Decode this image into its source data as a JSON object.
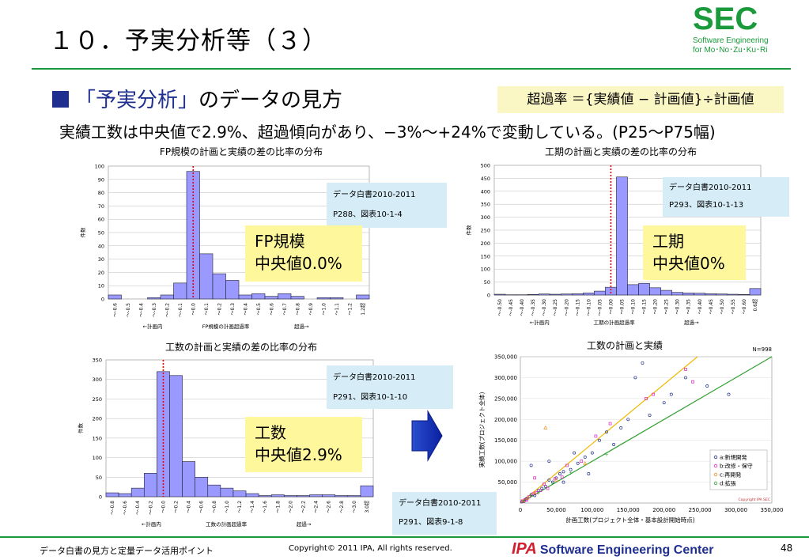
{
  "header": {
    "title": "１０．予実分析等（３）",
    "logo_main": "SEC",
    "logo_line1": "Software Engineering",
    "logo_line2": "for Mo･No･Zu･Ku･Ri"
  },
  "bullet": {
    "prefix": "「予実分析」",
    "text": "のデータの見方"
  },
  "formula": "超過率 ＝{実績値 − 計画値}÷計画値",
  "summary": "実績工数は中央値で2.9%、超過傾向があり、−3%〜+24%で変動している。(P25〜P75幅)",
  "charts": {
    "fp": {
      "title": "FP規模の計画と実績の差の比率の分布",
      "note_line1": "データ白書2010-2011",
      "note_line2": "P288、図表10-1-4",
      "callout_line1": "FP規模",
      "callout_line2": "中央値0.0%"
    },
    "period": {
      "title": "工期の計画と実績の差の比率の分布",
      "note_line1": "データ白書2010-2011",
      "note_line2": "P293、図表10-1-13",
      "callout_line1": "工期",
      "callout_line2": "中央値0%"
    },
    "effort": {
      "title": "工数の計画と実績の差の比率の分布",
      "note_line1": "データ白書2010-2011",
      "note_line2": "P291、図表10-1-10",
      "callout_line1": "工数",
      "callout_line2": "中央値2.9%"
    },
    "scatter": {
      "title": "工数の計画と実績",
      "note_line1": "データ白書2010-2011",
      "note_line2": "P291、図表9-1-8"
    }
  },
  "footer": {
    "left": "データ白書の見方と定量データ活用ポイント",
    "copyright": "Copyright© 2011 IPA, All rights reserved.",
    "ipa": "IPA",
    "center_name": "Software Engineering Center",
    "page": "48"
  },
  "colors": {
    "green": "#1a9a3a",
    "navy": "#1f2f8f",
    "bar": "#9999ff",
    "median": "#ee0000"
  },
  "chart_data": [
    {
      "type": "bar",
      "title": "FP規模の計画と実績の差の比率の分布",
      "ylabel": "件数",
      "xlabel": "FP規模の計画超過率",
      "x_annotations": [
        "←計画内",
        "超過→"
      ],
      "ylim": [
        0,
        100
      ],
      "yticks": [
        0,
        10,
        20,
        30,
        40,
        50,
        60,
        70,
        80,
        90,
        100
      ],
      "categories": [
        "〜-0.6",
        "〜-0.5",
        "〜-0.4",
        "〜-0.3",
        "〜-0.2",
        "〜-0.1",
        "〜0.0",
        "〜0.1",
        "〜0.2",
        "〜0.3",
        "〜0.4",
        "〜0.5",
        "〜0.6",
        "〜0.7",
        "〜0.8",
        "〜0.9",
        "〜1.0",
        "〜1.1",
        "〜1.2",
        "1.2超"
      ],
      "values": [
        3,
        0,
        0,
        1,
        3,
        12,
        96,
        34,
        19,
        14,
        3,
        4,
        2,
        4,
        2,
        0,
        1,
        1,
        0,
        3
      ],
      "median_label": "〜0.0"
    },
    {
      "type": "bar",
      "title": "工期の計画と実績の差の比率の分布",
      "ylabel": "件数",
      "xlabel": "工期の計画超過率",
      "x_annotations": [
        "←計画内",
        "超過→"
      ],
      "ylim": [
        0,
        500
      ],
      "yticks": [
        0,
        50,
        100,
        150,
        200,
        250,
        300,
        350,
        400,
        450,
        500
      ],
      "categories": [
        "〜-0.50",
        "〜-0.45",
        "〜-0.40",
        "〜-0.35",
        "〜-0.30",
        "〜-0.25",
        "〜-0.20",
        "〜-0.15",
        "〜-0.10",
        "〜-0.05",
        "〜0.00",
        "〜0.05",
        "〜0.10",
        "〜0.15",
        "〜0.20",
        "〜0.25",
        "〜0.30",
        "〜0.35",
        "〜0.40",
        "〜0.45",
        "〜0.50",
        "〜0.55",
        "〜0.60",
        "0.6超"
      ],
      "values": [
        3,
        1,
        1,
        2,
        4,
        3,
        4,
        5,
        8,
        15,
        30,
        455,
        40,
        45,
        28,
        18,
        10,
        8,
        7,
        5,
        4,
        3,
        2,
        25
      ],
      "median_label": "〜0.00"
    },
    {
      "type": "bar",
      "title": "工数の計画と実績の差の比率の分布",
      "ylabel": "件数",
      "xlabel": "工数の計画超過率",
      "x_annotations": [
        "←計画内",
        "超過→"
      ],
      "ylim": [
        0,
        350
      ],
      "yticks": [
        0,
        50,
        100,
        150,
        200,
        250,
        300,
        350
      ],
      "categories": [
        "〜-0.8",
        "〜-0.6",
        "〜-0.4",
        "〜-0.2",
        "〜0.0",
        "〜0.2",
        "〜0.4",
        "〜0.6",
        "〜0.8",
        "〜1.0",
        "〜1.2",
        "〜1.4",
        "〜1.6",
        "〜1.8",
        "〜2.0",
        "〜2.2",
        "〜2.4",
        "〜2.6",
        "〜2.8",
        "〜3.0",
        "3.0超"
      ],
      "values": [
        10,
        8,
        22,
        60,
        320,
        310,
        90,
        50,
        30,
        22,
        15,
        8,
        3,
        5,
        3,
        3,
        5,
        5,
        3,
        3,
        28
      ],
      "median_label": "〜0.0"
    },
    {
      "type": "scatter",
      "title": "工数の計画と実績",
      "annotation": "N=998",
      "xlabel": "計画工数(プロジェクト全体・基本設計開始時点)",
      "ylabel": "実績工数(プロジェクト全体)",
      "xlim": [
        0,
        350000
      ],
      "ylim": [
        0,
        350000
      ],
      "xticks": [
        0,
        50000,
        100000,
        150000,
        200000,
        250000,
        300000,
        350000
      ],
      "yticks": [
        50000,
        100000,
        150000,
        200000,
        250000,
        300000,
        350000
      ],
      "xtick_labels": [
        "0",
        "50,000",
        "100,000",
        "150,000",
        "200,000",
        "250,000",
        "300,000",
        "350,000"
      ],
      "ytick_labels": [
        "50,000",
        "100,000",
        "150,000",
        "200,000",
        "250,000",
        "300,000",
        "350,000"
      ],
      "legend": [
        "a:新規開発",
        "b:改修・保守",
        "c:再開発",
        "d:拡張"
      ],
      "legend_colors": [
        "#1f2f8f",
        "#e020c0",
        "#f09020",
        "#30a030"
      ],
      "legend_position": "bottom-right",
      "copyright": "Copyright IPA SEC",
      "trend_lines": [
        {
          "color": "#30a030",
          "slope": 1.0
        },
        {
          "color": "#f0b800",
          "slope": 1.42
        }
      ],
      "series": [
        {
          "name": "a:新規開発",
          "points": [
            [
              2000,
              3000
            ],
            [
              5000,
              4000
            ],
            [
              8000,
              10000
            ],
            [
              10000,
              12000
            ],
            [
              15000,
              20000
            ],
            [
              20000,
              18000
            ],
            [
              25000,
              30000
            ],
            [
              30000,
              35000
            ],
            [
              35000,
              40000
            ],
            [
              40000,
              55000
            ],
            [
              45000,
              50000
            ],
            [
              50000,
              60000
            ],
            [
              55000,
              70000
            ],
            [
              60000,
              75000
            ],
            [
              70000,
              80000
            ],
            [
              80000,
              95000
            ],
            [
              90000,
              110000
            ],
            [
              100000,
              120000
            ],
            [
              110000,
              150000
            ],
            [
              120000,
              170000
            ],
            [
              130000,
              140000
            ],
            [
              140000,
              180000
            ],
            [
              150000,
              200000
            ],
            [
              160000,
              300000
            ],
            [
              170000,
              335000
            ],
            [
              180000,
              210000
            ],
            [
              200000,
              240000
            ],
            [
              210000,
              260000
            ],
            [
              230000,
              300000
            ],
            [
              260000,
              280000
            ],
            [
              290000,
              260000
            ],
            [
              15000,
              90000
            ],
            [
              40000,
              100000
            ],
            [
              60000,
              50000
            ],
            [
              75000,
              120000
            ],
            [
              95000,
              70000
            ]
          ]
        },
        {
          "name": "b:改修・保守",
          "points": [
            [
              3000,
              5000
            ],
            [
              6000,
              8000
            ],
            [
              9000,
              7000
            ],
            [
              12000,
              15000
            ],
            [
              18000,
              22000
            ],
            [
              22000,
              25000
            ],
            [
              28000,
              30000
            ],
            [
              33000,
              45000
            ],
            [
              38000,
              35000
            ],
            [
              48000,
              58000
            ],
            [
              58000,
              62000
            ],
            [
              65000,
              90000
            ],
            [
              85000,
              100000
            ],
            [
              105000,
              160000
            ],
            [
              125000,
              190000
            ],
            [
              175000,
              250000
            ],
            [
              185000,
              260000
            ],
            [
              230000,
              320000
            ],
            [
              240000,
              290000
            ],
            [
              20000,
              60000
            ]
          ]
        },
        {
          "name": "c:再開発",
          "points": [
            [
              4000,
              5000
            ],
            [
              10000,
              12000
            ],
            [
              20000,
              25000
            ],
            [
              35000,
              180000
            ],
            [
              50000,
              55000
            ],
            [
              90000,
              95000
            ]
          ]
        },
        {
          "name": "d:拡張",
          "points": [
            [
              5000,
              6000
            ],
            [
              15000,
              18000
            ],
            [
              25000,
              24000
            ],
            [
              45000,
              47000
            ],
            [
              70000,
              72000
            ],
            [
              120000,
              115000
            ]
          ]
        }
      ]
    }
  ]
}
